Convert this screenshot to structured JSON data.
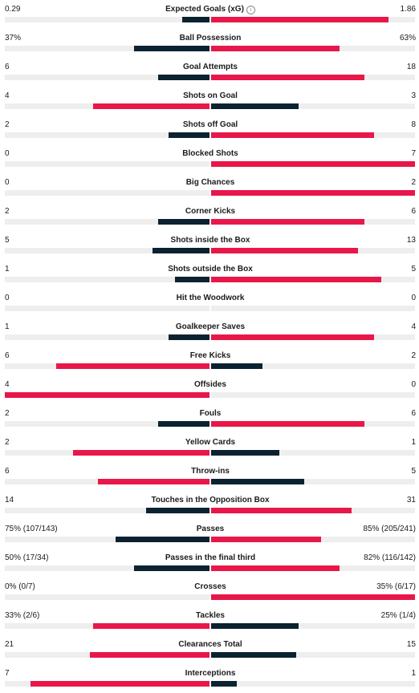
{
  "colors": {
    "winner": "#e8174a",
    "loser": "#0b2230"
  },
  "info_icon_glyph": "i",
  "stats": [
    {
      "name": "Expected Goals (xG)",
      "home": "0.29",
      "away": "1.86",
      "home_frac": 0.135,
      "away_frac": 0.87,
      "leader": "away",
      "info": true
    },
    {
      "name": "Ball Possession",
      "home": "37%",
      "away": "63%",
      "home_frac": 0.37,
      "away_frac": 0.63,
      "leader": "away"
    },
    {
      "name": "Goal Attempts",
      "home": "6",
      "away": "18",
      "home_frac": 0.25,
      "away_frac": 0.75,
      "leader": "away"
    },
    {
      "name": "Shots on Goal",
      "home": "4",
      "away": "3",
      "home_frac": 0.57,
      "away_frac": 0.43,
      "leader": "home"
    },
    {
      "name": "Shots off Goal",
      "home": "2",
      "away": "8",
      "home_frac": 0.2,
      "away_frac": 0.8,
      "leader": "away"
    },
    {
      "name": "Blocked Shots",
      "home": "0",
      "away": "7",
      "home_frac": 0,
      "away_frac": 1,
      "leader": "away"
    },
    {
      "name": "Big Chances",
      "home": "0",
      "away": "2",
      "home_frac": 0,
      "away_frac": 1,
      "leader": "away"
    },
    {
      "name": "Corner Kicks",
      "home": "2",
      "away": "6",
      "home_frac": 0.25,
      "away_frac": 0.75,
      "leader": "away"
    },
    {
      "name": "Shots inside the Box",
      "home": "5",
      "away": "13",
      "home_frac": 0.28,
      "away_frac": 0.72,
      "leader": "away"
    },
    {
      "name": "Shots outside the Box",
      "home": "1",
      "away": "5",
      "home_frac": 0.167,
      "away_frac": 0.833,
      "leader": "away"
    },
    {
      "name": "Hit the Woodwork",
      "home": "0",
      "away": "0",
      "home_frac": 0,
      "away_frac": 0,
      "leader": "none"
    },
    {
      "name": "Goalkeeper Saves",
      "home": "1",
      "away": "4",
      "home_frac": 0.2,
      "away_frac": 0.8,
      "leader": "away"
    },
    {
      "name": "Free Kicks",
      "home": "6",
      "away": "2",
      "home_frac": 0.75,
      "away_frac": 0.25,
      "leader": "home"
    },
    {
      "name": "Offsides",
      "home": "4",
      "away": "0",
      "home_frac": 1,
      "away_frac": 0,
      "leader": "home"
    },
    {
      "name": "Fouls",
      "home": "2",
      "away": "6",
      "home_frac": 0.25,
      "away_frac": 0.75,
      "leader": "away"
    },
    {
      "name": "Yellow Cards",
      "home": "2",
      "away": "1",
      "home_frac": 0.667,
      "away_frac": 0.333,
      "leader": "home"
    },
    {
      "name": "Throw-ins",
      "home": "6",
      "away": "5",
      "home_frac": 0.545,
      "away_frac": 0.455,
      "leader": "home"
    },
    {
      "name": "Touches in the Opposition Box",
      "home": "14",
      "away": "31",
      "home_frac": 0.31,
      "away_frac": 0.69,
      "leader": "away"
    },
    {
      "name": "Passes",
      "home": "75% (107/143)",
      "away": "85% (205/241)",
      "home_frac": 0.46,
      "away_frac": 0.54,
      "leader": "away"
    },
    {
      "name": "Passes in the final third",
      "home": "50% (17/34)",
      "away": "82% (116/142)",
      "home_frac": 0.37,
      "away_frac": 0.63,
      "leader": "away"
    },
    {
      "name": "Crosses",
      "home": "0% (0/7)",
      "away": "35% (6/17)",
      "home_frac": 0,
      "away_frac": 1,
      "leader": "away"
    },
    {
      "name": "Tackles",
      "home": "33% (2/6)",
      "away": "25% (1/4)",
      "home_frac": 0.57,
      "away_frac": 0.43,
      "leader": "home"
    },
    {
      "name": "Clearances Total",
      "home": "21",
      "away": "15",
      "home_frac": 0.583,
      "away_frac": 0.417,
      "leader": "home"
    },
    {
      "name": "Interceptions",
      "home": "7",
      "away": "1",
      "home_frac": 0.875,
      "away_frac": 0.125,
      "leader": "home"
    }
  ]
}
